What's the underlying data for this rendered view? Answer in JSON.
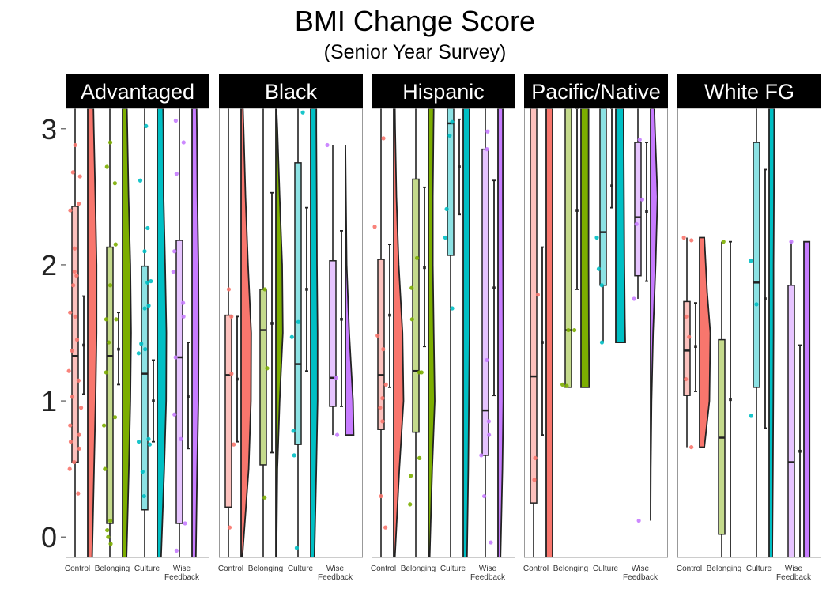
{
  "chart_data": {
    "type": "raincloud",
    "title": "BMI Change Score",
    "subtitle": "(Senior Year Survey)",
    "xlabel": "",
    "ylabel": "",
    "ylim": [
      -0.15,
      3.15
    ],
    "y_ticks": [
      "0",
      "1",
      "2",
      "3"
    ],
    "x_tick_labels": [
      "Control",
      "Belonging",
      "Culture",
      "Wise\nFeedback"
    ],
    "grid": false,
    "colors": {
      "Control": "#F8766D",
      "Belonging": "#7CAE00",
      "Culture": "#00BFC4",
      "Wise Feedback": "#C77CFF"
    },
    "panels": [
      {
        "name": "Advantaged",
        "groups": [
          {
            "condition": "Control",
            "box": {
              "q1": 0.55,
              "median": 1.33,
              "q3": 2.43,
              "lo": -0.15,
              "hi": 3.15
            },
            "mean": 1.41,
            "ci": [
              1.05,
              1.77
            ],
            "density": {
              "y": [
                -0.15,
                0.5,
                1.0,
                1.5,
                2.0,
                2.5,
                3.0,
                3.15
              ],
              "w": [
                0.35,
                0.5,
                0.62,
                0.7,
                0.7,
                0.6,
                0.48,
                0.45
              ]
            },
            "points": [
              0.32,
              0.5,
              0.55,
              0.65,
              0.7,
              0.75,
              0.82,
              0.95,
              1.03,
              1.15,
              1.22,
              1.37,
              1.45,
              1.62,
              1.65,
              1.85,
              1.92,
              1.95,
              2.12,
              2.4,
              2.45,
              2.65,
              2.68,
              2.88
            ]
          },
          {
            "condition": "Belonging",
            "box": {
              "q1": 0.1,
              "median": 1.33,
              "q3": 2.13,
              "lo": -0.15,
              "hi": 3.15
            },
            "mean": 1.38,
            "ci": [
              1.12,
              1.65
            ],
            "density": {
              "y": [
                -0.15,
                0.5,
                1.0,
                1.5,
                2.0,
                2.5,
                3.0,
                3.15
              ],
              "w": [
                0.32,
                0.5,
                0.62,
                0.68,
                0.62,
                0.48,
                0.38,
                0.35
              ]
            },
            "points": [
              -0.05,
              0.0,
              0.05,
              0.12,
              0.5,
              0.82,
              0.88,
              1.21,
              1.43,
              1.6,
              1.6,
              1.85,
              2.15,
              2.6,
              2.72,
              2.9
            ]
          },
          {
            "condition": "Culture",
            "box": {
              "q1": 0.2,
              "median": 1.2,
              "q3": 1.99,
              "lo": -0.15,
              "hi": 3.15
            },
            "mean": 1.0,
            "ci": [
              0.7,
              1.3
            ],
            "density": {
              "y": [
                -0.15,
                0.5,
                1.0,
                1.5,
                2.0,
                2.5,
                3.0,
                3.15
              ],
              "w": [
                0.3,
                0.55,
                0.7,
                0.72,
                0.62,
                0.5,
                0.48,
                0.46
              ]
            },
            "points": [
              0.3,
              0.48,
              0.68,
              0.7,
              0.72,
              1.35,
              1.38,
              1.42,
              1.68,
              1.7,
              1.87,
              1.88,
              2.1,
              2.27,
              2.62,
              3.02
            ]
          },
          {
            "condition": "Wise Feedback",
            "box": {
              "q1": 0.1,
              "median": 1.32,
              "q3": 2.18,
              "lo": -0.15,
              "hi": 3.15
            },
            "mean": 1.03,
            "ci": [
              0.65,
              1.43
            ],
            "density": {
              "y": [
                -0.15,
                0.5,
                1.0,
                1.5,
                2.0,
                2.5,
                3.0,
                3.15
              ],
              "w": [
                0.3,
                0.4,
                0.5,
                0.52,
                0.5,
                0.42,
                0.38,
                0.36
              ]
            },
            "points": [
              -0.1,
              0.1,
              0.72,
              0.9,
              1.32,
              1.62,
              1.72,
              1.95,
              2.1,
              2.67,
              2.9,
              3.06
            ]
          }
        ]
      },
      {
        "name": "Black",
        "groups": [
          {
            "condition": "Control",
            "box": {
              "q1": 0.22,
              "median": 1.19,
              "q3": 1.63,
              "lo": -0.15,
              "hi": 3.15
            },
            "mean": 1.16,
            "ci": [
              0.7,
              1.62
            ],
            "density": {
              "y": [
                -0.15,
                0.5,
                1.0,
                1.5,
                2.0,
                2.5,
                3.0,
                3.15
              ],
              "w": [
                0.1,
                0.6,
                0.78,
                0.8,
                0.55,
                0.35,
                0.2,
                0.15
              ]
            },
            "points": [
              0.07,
              0.68,
              1.2,
              1.62,
              1.82
            ]
          },
          {
            "condition": "Belonging",
            "box": {
              "q1": 0.53,
              "median": 1.52,
              "q3": 1.82,
              "lo": -0.15,
              "hi": 3.15
            },
            "mean": 1.57,
            "ci": [
              0.62,
              2.53
            ],
            "density": {
              "y": [
                -0.15,
                0.5,
                1.0,
                1.5,
                2.0,
                2.5,
                3.0,
                3.15
              ],
              "w": [
                0.05,
                0.12,
                0.3,
                0.55,
                0.5,
                0.3,
                0.12,
                0.05
              ]
            },
            "points": [
              0.29,
              1.24,
              1.82
            ]
          },
          {
            "condition": "Culture",
            "box": {
              "q1": 0.68,
              "median": 1.27,
              "q3": 2.75,
              "lo": -0.15,
              "hi": 3.15
            },
            "mean": 1.82,
            "ci": [
              1.22,
              2.42
            ],
            "density": {
              "y": [
                -0.15,
                0.5,
                1.0,
                1.5,
                2.0,
                2.5,
                3.0,
                3.15
              ],
              "w": [
                0.3,
                0.45,
                0.55,
                0.55,
                0.5,
                0.48,
                0.45,
                0.45
              ]
            },
            "points": [
              -0.08,
              0.6,
              0.78,
              1.47,
              1.58,
              3.12
            ]
          },
          {
            "condition": "Wise Feedback",
            "box": {
              "q1": 0.96,
              "median": 1.17,
              "q3": 2.03,
              "lo": 0.75,
              "hi": 2.88
            },
            "mean": 1.6,
            "ci": [
              0.96,
              2.25
            ],
            "density": {
              "y": [
                0.75,
                1.0,
                1.5,
                2.0,
                2.5,
                2.88
              ],
              "w": [
                0.65,
                0.6,
                0.3,
                0.1,
                0.04,
                0.0
              ]
            },
            "points": [
              0.75,
              1.17,
              2.88
            ]
          }
        ]
      },
      {
        "name": "Hispanic",
        "groups": [
          {
            "condition": "Control",
            "box": {
              "q1": 0.79,
              "median": 1.19,
              "q3": 2.04,
              "lo": -0.15,
              "hi": 3.15
            },
            "mean": 1.63,
            "ci": [
              1.1,
              2.15
            ],
            "density": {
              "y": [
                -0.15,
                0.5,
                1.0,
                1.5,
                2.0,
                2.5,
                3.0,
                3.15
              ],
              "w": [
                0.1,
                0.45,
                0.78,
                0.7,
                0.4,
                0.22,
                0.12,
                0.1
              ]
            },
            "points": [
              0.07,
              0.3,
              0.85,
              0.95,
              1.02,
              1.12,
              1.38,
              1.48,
              2.28,
              2.93
            ]
          },
          {
            "condition": "Belonging",
            "box": {
              "q1": 0.77,
              "median": 1.22,
              "q3": 2.63,
              "lo": -0.15,
              "hi": 3.15
            },
            "mean": 1.98,
            "ci": [
              1.4,
              2.57
            ],
            "density": {
              "y": [
                -0.15,
                0.5,
                1.0,
                1.5,
                2.0,
                2.5,
                3.0,
                3.15
              ],
              "w": [
                0.1,
                0.3,
                0.5,
                0.42,
                0.35,
                0.35,
                0.4,
                0.42
              ]
            },
            "points": [
              0.24,
              0.45,
              0.58,
              1.21,
              1.21,
              1.6,
              1.83,
              2.05
            ]
          },
          {
            "condition": "Culture",
            "box": {
              "q1": 2.07,
              "median": 3.04,
              "q3": 3.15,
              "lo": -0.15,
              "hi": 3.15
            },
            "mean": 2.72,
            "ci": [
              2.37,
              3.07
            ],
            "density": {
              "y": [
                -0.15,
                0.5,
                1.0,
                1.5,
                2.0,
                2.5,
                3.0,
                3.15
              ],
              "w": [
                0.3,
                0.4,
                0.45,
                0.5,
                0.5,
                0.5,
                0.5,
                0.5
              ]
            },
            "points": [
              1.68,
              2.2,
              2.41,
              2.95,
              3.05
            ]
          },
          {
            "condition": "Wise Feedback",
            "box": {
              "q1": 0.6,
              "median": 0.93,
              "q3": 2.85,
              "lo": -0.15,
              "hi": 3.15
            },
            "mean": 1.83,
            "ci": [
              1.04,
              2.62
            ],
            "density": {
              "y": [
                -0.15,
                0.5,
                1.0,
                1.5,
                2.0,
                2.5,
                3.0,
                3.15
              ],
              "w": [
                0.2,
                0.35,
                0.42,
                0.42,
                0.4,
                0.38,
                0.38,
                0.38
              ]
            },
            "points": [
              -0.04,
              0.3,
              0.6,
              0.75,
              0.85,
              1.3,
              2.85,
              2.98
            ]
          }
        ]
      },
      {
        "name": "Pacific/Native",
        "groups": [
          {
            "condition": "Control",
            "box": {
              "q1": 0.25,
              "median": 1.18,
              "q3": 3.15,
              "lo": -0.15,
              "hi": 3.15
            },
            "mean": 1.43,
            "ci": [
              0.75,
              2.13
            ],
            "density": {
              "y": [
                -0.15,
                0.5,
                1.0,
                1.5,
                2.0,
                2.5,
                3.0,
                3.15
              ],
              "w": [
                0.5,
                0.5,
                0.5,
                0.5,
                0.5,
                0.5,
                0.5,
                0.5
              ]
            },
            "points": [
              0.42,
              0.58,
              1.78
            ]
          },
          {
            "condition": "Belonging",
            "box": {
              "q1": 1.1,
              "median": 1.52,
              "q3": 3.15,
              "lo": 1.1,
              "hi": 3.15
            },
            "mean": 2.4,
            "ci": [
              1.82,
              3.15
            ],
            "density": {
              "y": [
                1.1,
                1.5,
                2.0,
                2.5,
                3.0,
                3.15
              ],
              "w": [
                0.65,
                0.62,
                0.6,
                0.6,
                0.6,
                0.6
              ]
            },
            "points": [
              1.11,
              1.12,
              1.52,
              1.52
            ]
          },
          {
            "condition": "Culture",
            "box": {
              "q1": 1.85,
              "median": 2.24,
              "q3": 3.15,
              "lo": 1.43,
              "hi": 3.15
            },
            "mean": 2.58,
            "ci": [
              2.42,
              3.15
            ],
            "density": {
              "y": [
                1.43,
                1.6,
                2.0,
                2.5,
                3.0,
                3.15
              ],
              "w": [
                0.75,
                0.72,
                0.68,
                0.65,
                0.62,
                0.62
              ]
            },
            "points": [
              1.43,
              1.85,
              1.97,
              2.2
            ]
          },
          {
            "condition": "Wise Feedback",
            "box": {
              "q1": 1.92,
              "median": 2.35,
              "q3": 2.9,
              "lo": 1.75,
              "hi": 3.15
            },
            "mean": 2.39,
            "ci": [
              1.88,
              2.9
            ],
            "density": {
              "y": [
                0.12,
                0.5,
                1.0,
                1.5,
                2.0,
                2.5,
                3.0,
                3.15
              ],
              "w": [
                0.0,
                0.02,
                0.08,
                0.2,
                0.4,
                0.55,
                0.35,
                0.3
              ]
            },
            "points": [
              0.12,
              1.75,
              2.3,
              2.48,
              2.92
            ]
          }
        ]
      },
      {
        "name": "White FG",
        "groups": [
          {
            "condition": "Control",
            "box": {
              "q1": 1.04,
              "median": 1.37,
              "q3": 1.73,
              "lo": 0.66,
              "hi": 2.2
            },
            "mean": 1.4,
            "ci": [
              1.07,
              1.72
            ],
            "density": {
              "y": [
                0.66,
                1.0,
                1.5,
                1.8,
                2.2
              ],
              "w": [
                0.38,
                0.78,
                0.85,
                0.6,
                0.38
              ]
            },
            "points": [
              0.66,
              1.16,
              1.47,
              1.62,
              2.18,
              2.2
            ]
          },
          {
            "condition": "Belonging",
            "box": {
              "q1": 0.02,
              "median": 0.73,
              "q3": 1.45,
              "lo": -0.15,
              "hi": 2.17
            },
            "mean": 1.01,
            "ci": [
              -0.15,
              2.17
            ],
            "density": null,
            "points": [
              2.17
            ]
          },
          {
            "condition": "Culture",
            "box": {
              "q1": 1.1,
              "median": 1.87,
              "q3": 2.9,
              "lo": -0.15,
              "hi": 3.15
            },
            "mean": 1.75,
            "ci": [
              0.8,
              2.7
            ],
            "density": {
              "y": [
                -0.15,
                0.5,
                1.0,
                1.5,
                2.0,
                2.5,
                3.0,
                3.15
              ],
              "w": [
                0.25,
                0.3,
                0.33,
                0.35,
                0.35,
                0.38,
                0.4,
                0.4
              ]
            },
            "points": [
              0.89,
              1.71,
              2.03
            ]
          },
          {
            "condition": "Wise Feedback",
            "box": {
              "q1": -0.15,
              "median": 0.55,
              "q3": 1.85,
              "lo": -0.15,
              "hi": 2.17
            },
            "mean": 0.63,
            "ci": [
              -0.15,
              1.41
            ],
            "density": {
              "y": [
                -0.15,
                1.0,
                2.17
              ],
              "w": [
                0.45,
                0.45,
                0.45
              ]
            },
            "points": [
              2.17
            ]
          }
        ]
      }
    ]
  }
}
